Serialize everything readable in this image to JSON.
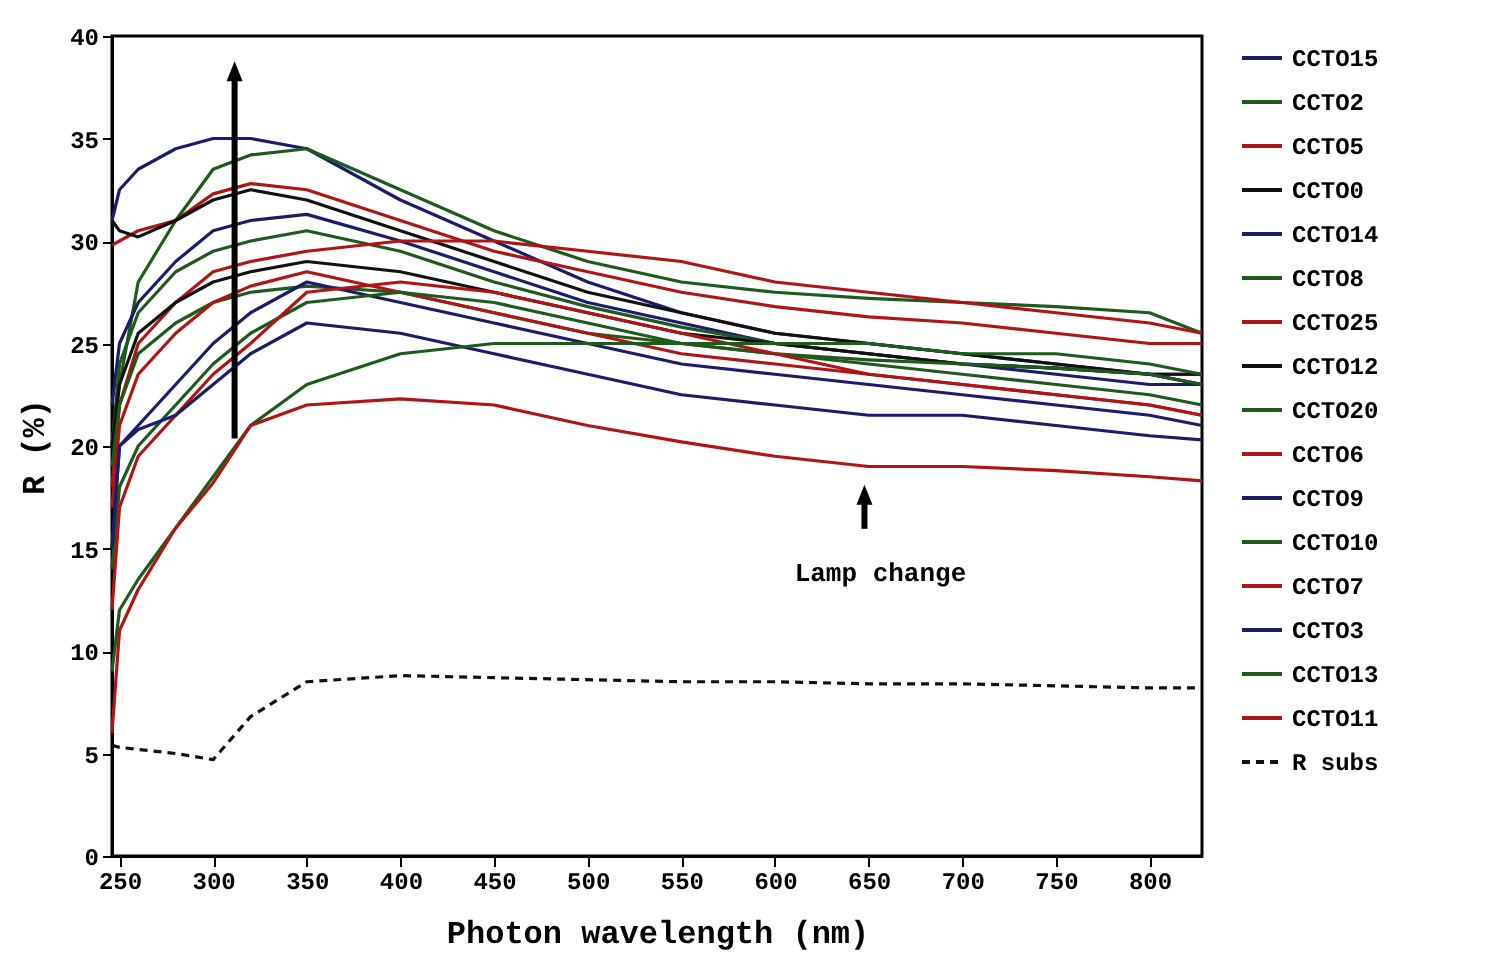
{
  "chart_data": {
    "type": "line",
    "xlabel": "Photon wavelength (nm)",
    "ylabel": "R (%)",
    "x": [
      246,
      250,
      260,
      280,
      300,
      320,
      350,
      400,
      450,
      500,
      550,
      600,
      650,
      700,
      750,
      800,
      828
    ],
    "xlim": [
      246,
      828
    ],
    "xticks": [
      250,
      300,
      350,
      400,
      450,
      500,
      550,
      600,
      650,
      700,
      750,
      800
    ],
    "ylim": [
      0,
      40
    ],
    "yticks": [
      0,
      5,
      10,
      15,
      20,
      25,
      30,
      35,
      40
    ],
    "grid": false,
    "legend": "right",
    "marker": "none",
    "annotations": [
      "Lamp change"
    ],
    "series": [
      {
        "name": "CCTO15",
        "color": "#1c1c6a",
        "values": [
          31,
          32.5,
          33.5,
          34.5,
          35,
          35,
          34.5,
          32,
          30,
          28,
          26.5,
          25.5,
          25,
          24.5,
          24,
          23.5,
          23.5
        ]
      },
      {
        "name": "CCTO2",
        "color": "#1e5a1e",
        "values": [
          20,
          23,
          28,
          31,
          33.5,
          34.2,
          34.5,
          32.5,
          30.5,
          29,
          28,
          27.5,
          27.2,
          27,
          26.8,
          26.5,
          25.5
        ]
      },
      {
        "name": "CCTO5",
        "color": "#b01414",
        "values": [
          29.8,
          30,
          30.5,
          31,
          32.3,
          32.8,
          32.5,
          31,
          29.5,
          28.5,
          27.5,
          26.8,
          26.3,
          26,
          25.5,
          25,
          25
        ]
      },
      {
        "name": "CCTO0",
        "color": "#111111",
        "values": [
          31,
          30.5,
          30.2,
          31,
          32,
          32.5,
          32,
          30.5,
          29,
          27.5,
          26.5,
          25.5,
          25,
          24.5,
          24,
          23.5,
          23.5
        ]
      },
      {
        "name": "CCTO14",
        "color": "#1c1c6a",
        "values": [
          22,
          25,
          27,
          29,
          30.5,
          31,
          31.3,
          30,
          28.5,
          27,
          26,
          25,
          24.5,
          24,
          23.5,
          23,
          23
        ]
      },
      {
        "name": "CCTO8",
        "color": "#1e5a1e",
        "values": [
          20,
          24,
          26.5,
          28.5,
          29.5,
          30,
          30.5,
          29.5,
          28,
          26.8,
          25.8,
          25,
          24.5,
          24,
          23.8,
          23.5,
          23
        ]
      },
      {
        "name": "CCTO25",
        "color": "#b01414",
        "values": [
          18,
          22,
          25,
          27,
          28.5,
          29,
          29.5,
          30,
          30,
          29.5,
          29,
          28,
          27.5,
          27,
          26.5,
          26,
          25.5
        ]
      },
      {
        "name": "CCTO12",
        "color": "#111111",
        "values": [
          20,
          23,
          25.5,
          27,
          28,
          28.5,
          29,
          28.5,
          27.5,
          26.5,
          25.5,
          25,
          24.5,
          24,
          23.8,
          23.5,
          23
        ]
      },
      {
        "name": "CCTO20",
        "color": "#1e5a1e",
        "values": [
          19,
          22,
          24.5,
          26,
          27,
          27.5,
          27.8,
          27.5,
          26.5,
          25.5,
          25,
          24.5,
          24.2,
          24,
          23.8,
          23.5,
          23
        ]
      },
      {
        "name": "CCTO6",
        "color": "#b01414",
        "values": [
          17,
          21,
          23.5,
          25.5,
          27,
          27.8,
          28.5,
          27.5,
          26.5,
          25.5,
          24.5,
          24,
          23.5,
          23,
          22.5,
          22,
          21.5
        ]
      },
      {
        "name": "CCTO9",
        "color": "#1c1c6a",
        "values": [
          15,
          20,
          21,
          23,
          25,
          26.5,
          28,
          27,
          26,
          25,
          24,
          23.5,
          23,
          22.5,
          22,
          21.5,
          21
        ]
      },
      {
        "name": "CCTO10",
        "color": "#1e5a1e",
        "values": [
          14,
          18,
          20,
          22,
          24,
          25.5,
          27,
          27.5,
          27,
          26,
          25,
          24.5,
          24,
          23.5,
          23,
          22.5,
          22
        ]
      },
      {
        "name": "CCTO7",
        "color": "#b01414",
        "values": [
          12,
          17,
          19.5,
          21.5,
          23.5,
          25,
          27.5,
          28,
          27.5,
          26.5,
          25.5,
          24.5,
          23.5,
          23,
          22.5,
          22,
          21.5
        ]
      },
      {
        "name": "CCTO3",
        "color": "#1c1c6a",
        "values": [
          15,
          20,
          20.8,
          21.5,
          23,
          24.5,
          26,
          25.5,
          24.5,
          23.5,
          22.5,
          22,
          21.5,
          21.5,
          21,
          20.5,
          20.3
        ]
      },
      {
        "name": "CCTO13",
        "color": "#1e5a1e",
        "values": [
          9,
          12,
          13.5,
          16,
          18.5,
          21,
          23,
          24.5,
          25,
          25,
          25,
          25,
          25,
          24.5,
          24.5,
          24,
          23.5
        ]
      },
      {
        "name": "CCTO11",
        "color": "#b01414",
        "values": [
          6,
          11,
          13,
          16,
          18.2,
          21,
          22,
          22.3,
          22,
          21,
          20.2,
          19.5,
          19,
          19,
          18.8,
          18.5,
          18.3
        ]
      },
      {
        "name": "R subs",
        "color": "#111111",
        "line_style": "dashed",
        "values": [
          5.4,
          5.3,
          5.2,
          5,
          4.7,
          6.8,
          8.5,
          8.8,
          8.7,
          8.6,
          8.5,
          8.5,
          8.4,
          8.4,
          8.3,
          8.2,
          8.2
        ]
      }
    ]
  }
}
